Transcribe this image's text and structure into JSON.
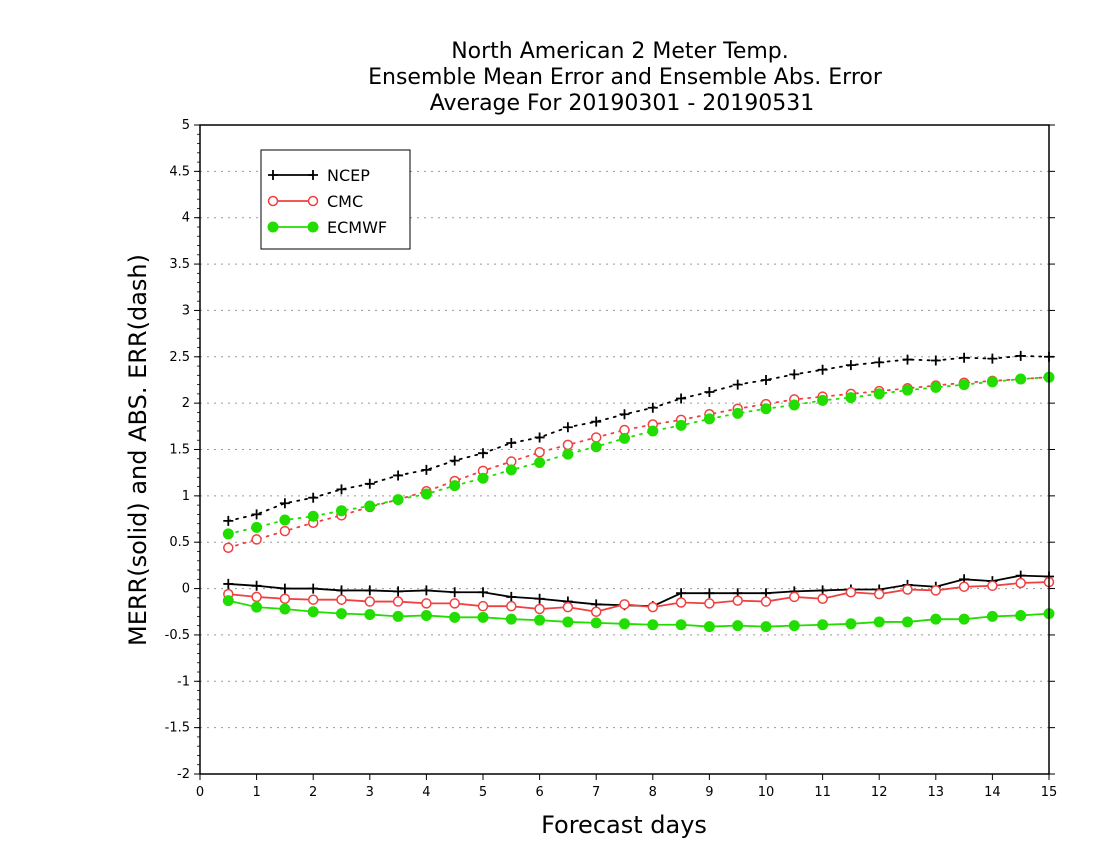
{
  "chart_data": {
    "type": "line",
    "title": [
      "North American 2 Meter Temp.",
      "Ensemble Mean Error and Ensemble Abs. Error",
      "Average For 20190301 - 20190531"
    ],
    "xlabel": "Forecast days",
    "ylabel": "MERR(solid) and ABS. ERR(dash)",
    "xlim": [
      0,
      15
    ],
    "ylim": [
      -2,
      5
    ],
    "x_ticks": [
      0,
      1,
      2,
      3,
      4,
      5,
      6,
      7,
      8,
      9,
      10,
      11,
      12,
      13,
      14,
      15
    ],
    "y_ticks": [
      -2,
      -1.5,
      -1,
      -0.5,
      0,
      0.5,
      1,
      1.5,
      2,
      2.5,
      3,
      3.5,
      4,
      4.5,
      5
    ],
    "y_tick_labels": [
      "-2",
      "-1.5",
      "-1",
      "-0.5",
      "0",
      "0.5",
      "1",
      "1.5",
      "2",
      "2.5",
      "3",
      "3.5",
      "4",
      "4.5",
      "5"
    ],
    "grid": "horizontal-dotted",
    "legend_position": "top-left",
    "x": [
      0.5,
      1,
      1.5,
      2,
      2.5,
      3,
      3.5,
      4,
      4.5,
      5,
      5.5,
      6,
      6.5,
      7,
      7.5,
      8,
      8.5,
      9,
      9.5,
      10,
      10.5,
      11,
      11.5,
      12,
      12.5,
      13,
      13.5,
      14,
      14.5,
      15
    ],
    "series": [
      {
        "name": "NCEP",
        "color": "#000000",
        "marker": "plus",
        "abs_err": [
          0.73,
          0.8,
          0.92,
          0.98,
          1.07,
          1.13,
          1.22,
          1.28,
          1.38,
          1.46,
          1.57,
          1.63,
          1.74,
          1.8,
          1.88,
          1.95,
          2.05,
          2.12,
          2.2,
          2.25,
          2.31,
          2.36,
          2.41,
          2.44,
          2.47,
          2.46,
          2.49,
          2.48,
          2.51,
          2.5
        ],
        "mean_err": [
          0.05,
          0.03,
          0.0,
          0.0,
          -0.02,
          -0.02,
          -0.03,
          -0.02,
          -0.04,
          -0.04,
          -0.09,
          -0.11,
          -0.14,
          -0.17,
          -0.18,
          -0.19,
          -0.05,
          -0.05,
          -0.05,
          -0.05,
          -0.03,
          -0.02,
          -0.01,
          -0.01,
          0.04,
          0.02,
          0.1,
          0.08,
          0.14,
          0.13
        ]
      },
      {
        "name": "CMC",
        "color": "#f04040",
        "marker": "open-circle",
        "abs_err": [
          0.44,
          0.53,
          0.62,
          0.71,
          0.79,
          0.88,
          0.96,
          1.05,
          1.16,
          1.27,
          1.37,
          1.47,
          1.55,
          1.63,
          1.71,
          1.77,
          1.82,
          1.88,
          1.94,
          1.99,
          2.04,
          2.07,
          2.1,
          2.13,
          2.16,
          2.19,
          2.22,
          2.24,
          2.26,
          2.28
        ],
        "mean_err": [
          -0.06,
          -0.09,
          -0.11,
          -0.12,
          -0.12,
          -0.14,
          -0.14,
          -0.16,
          -0.16,
          -0.19,
          -0.19,
          -0.22,
          -0.2,
          -0.25,
          -0.17,
          -0.2,
          -0.15,
          -0.16,
          -0.13,
          -0.14,
          -0.09,
          -0.11,
          -0.04,
          -0.06,
          -0.01,
          -0.02,
          0.02,
          0.03,
          0.06,
          0.07
        ]
      },
      {
        "name": "ECMWF",
        "color": "#22dd00",
        "marker": "filled-circle",
        "abs_err": [
          0.59,
          0.66,
          0.74,
          0.78,
          0.84,
          0.89,
          0.96,
          1.02,
          1.11,
          1.19,
          1.28,
          1.36,
          1.45,
          1.53,
          1.62,
          1.7,
          1.76,
          1.83,
          1.89,
          1.94,
          1.98,
          2.03,
          2.06,
          2.1,
          2.14,
          2.17,
          2.2,
          2.23,
          2.26,
          2.28
        ],
        "mean_err": [
          -0.13,
          -0.2,
          -0.22,
          -0.25,
          -0.27,
          -0.28,
          -0.3,
          -0.29,
          -0.31,
          -0.31,
          -0.33,
          -0.34,
          -0.36,
          -0.37,
          -0.38,
          -0.39,
          -0.39,
          -0.41,
          -0.4,
          -0.41,
          -0.4,
          -0.39,
          -0.38,
          -0.36,
          -0.36,
          -0.33,
          -0.33,
          -0.3,
          -0.29,
          -0.27
        ]
      }
    ]
  }
}
